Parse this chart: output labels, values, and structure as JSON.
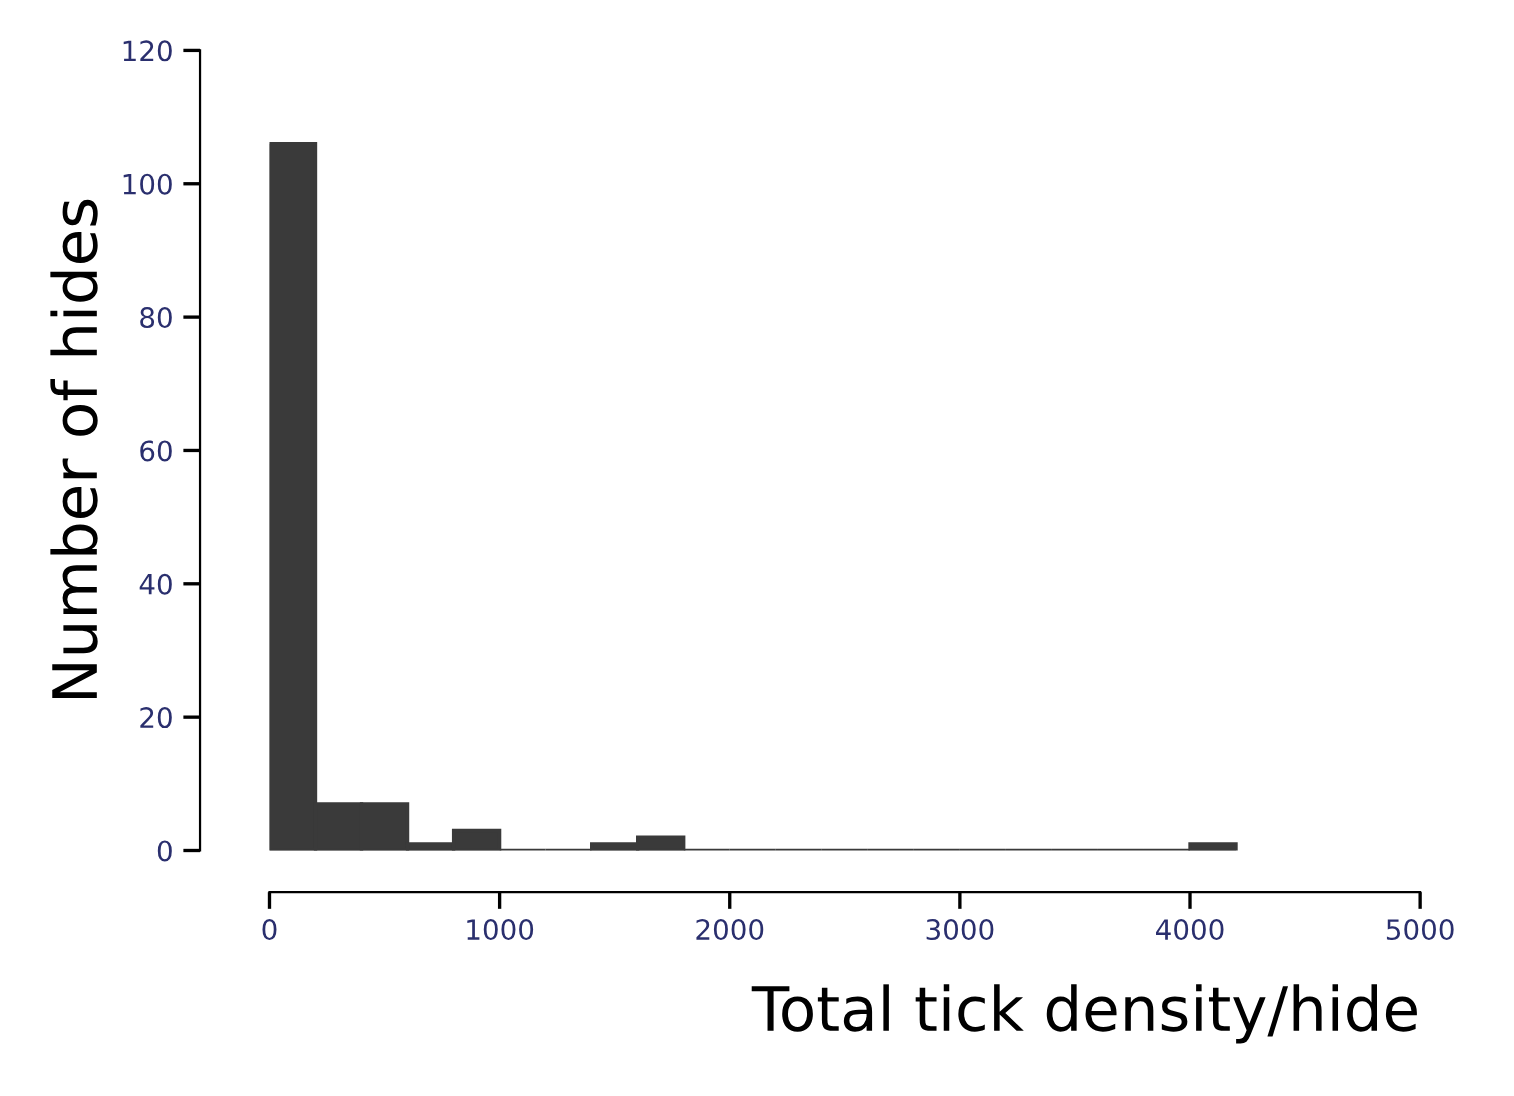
{
  "chart_data": {
    "type": "histogram",
    "xlabel": "Total tick density/hide",
    "ylabel": "Number of hides",
    "bins": [
      0,
      200,
      400,
      600,
      800,
      1000,
      1200,
      1400,
      1600,
      1800,
      2000,
      2200,
      2400,
      2600,
      2800,
      3000,
      3200,
      3400,
      3600,
      3800,
      4000,
      4200
    ],
    "values": [
      106,
      7,
      7,
      1,
      3,
      0,
      0,
      1,
      2,
      0,
      0,
      0,
      0,
      0,
      0,
      0,
      0,
      0,
      0,
      0,
      1
    ],
    "color": "#3a3a3a",
    "xlim": [
      0,
      5000
    ],
    "xticks": [
      0,
      1000,
      2000,
      3000,
      4000,
      5000
    ],
    "ylim": [
      0,
      120
    ],
    "yticks": [
      0,
      20,
      40,
      60,
      80,
      100,
      120
    ],
    "grid": false
  }
}
